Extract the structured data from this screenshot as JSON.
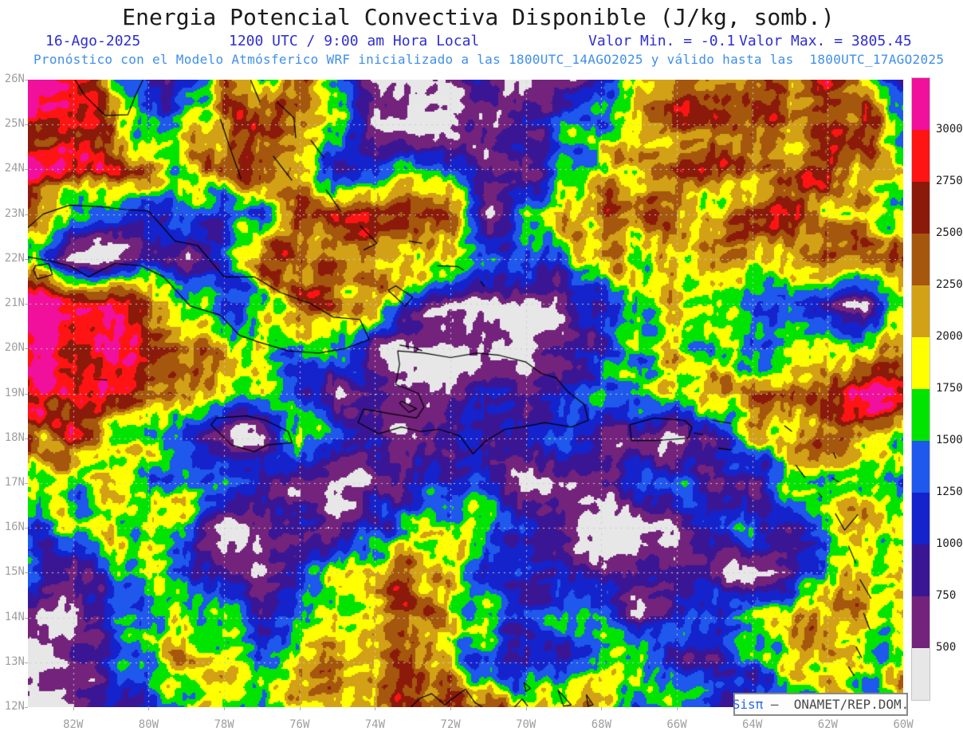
{
  "header": {
    "title": "Energia Potencial Convectiva Disponible (J/kg, somb.)",
    "date": "16-Ago-2025",
    "time": "1200 UTC / 9:00 am Hora Local",
    "min_label": "Valor Min. = -0.1",
    "max_label": "Valor Max. = 3805.45",
    "forecast_line": "Pronóstico con el Modelo Atmósferico WRF inicializado a las 1800UTC_14AGO2025 y válido hasta las  1800UTC_17AGO2025"
  },
  "attribution": {
    "brand": "Sisπ",
    "rest": " –  ONAMET/REP.DOM."
  },
  "chart_data": {
    "type": "heatmap",
    "title": "Energia Potencial Convectiva Disponible (J/kg, somb.)",
    "units": "J/kg",
    "valor_min": -0.1,
    "valor_max": 3805.45,
    "model": "WRF",
    "valid": "16-Ago-2025 1200 UTC / 9:00 am Hora Local",
    "init": "1800UTC_14AGO2025",
    "end": "1800UTC_17AGO2025",
    "lon_range": [
      -83.2,
      -60.0
    ],
    "lat_range": [
      12,
      26
    ],
    "lat_ticks": [
      "26N",
      "25N",
      "24N",
      "23N",
      "22N",
      "21N",
      "20N",
      "19N",
      "18N",
      "17N",
      "16N",
      "15N",
      "14N",
      "13N",
      "12N"
    ],
    "lon_ticks": [
      "82W",
      "80W",
      "78W",
      "76W",
      "74W",
      "72W",
      "70W",
      "68W",
      "66W",
      "64W",
      "62W",
      "60W"
    ],
    "lon_tick_values": [
      -82,
      -80,
      -78,
      -76,
      -74,
      -72,
      -70,
      -68,
      -66,
      -64,
      -62,
      -60
    ],
    "lat_tick_values": [
      26,
      25,
      24,
      23,
      22,
      21,
      20,
      19,
      18,
      17,
      16,
      15,
      14,
      13,
      12
    ],
    "levels": [
      500,
      750,
      1000,
      1250,
      1500,
      1750,
      2000,
      2250,
      2500,
      2750,
      3000
    ],
    "palette": [
      "#e7e7e7",
      "#73237b",
      "#3b1694",
      "#1423cc",
      "#1f58ec",
      "#00e400",
      "#ffff00",
      "#d2a115",
      "#a5570d",
      "#8b1a0b",
      "#fe1413",
      "#f0109b"
    ],
    "gridlines": {
      "lat_step": 1,
      "lon_step": 2,
      "color": "#cccccc"
    },
    "coast_color": "#000000",
    "grid": {
      "lon_start": -83,
      "lon_step": 1,
      "lat_start": 26,
      "lat_step": -1,
      "cols": 24,
      "rows": 15,
      "values": [
        [
          3200,
          2875,
          1875,
          1125,
          875,
          2100,
          1875,
          2375,
          1625,
          625,
          350,
          625,
          875,
          350,
          625,
          875,
          2375,
          2375,
          2125,
          2625,
          2375,
          2875,
          1625,
          1125
        ],
        [
          2875,
          2875,
          2375,
          1125,
          1875,
          2375,
          2625,
          1875,
          1875,
          350,
          350,
          350,
          625,
          875,
          1375,
          1625,
          1875,
          2375,
          2625,
          2375,
          2125,
          2375,
          2875,
          1375
        ],
        [
          2875,
          2625,
          2875,
          2125,
          1875,
          2375,
          2625,
          2125,
          1125,
          1125,
          1875,
          1125,
          875,
          625,
          1375,
          1875,
          2125,
          2375,
          2375,
          2125,
          2375,
          2625,
          2125,
          1875
        ],
        [
          2375,
          1375,
          1125,
          1125,
          1375,
          1125,
          1375,
          2375,
          2625,
          2375,
          2625,
          2375,
          350,
          1375,
          2125,
          2375,
          2375,
          2125,
          1875,
          2375,
          2625,
          2125,
          1875,
          1625
        ],
        [
          1625,
          350,
          350,
          875,
          625,
          1125,
          2625,
          2375,
          2125,
          2375,
          2125,
          1875,
          1625,
          1375,
          1375,
          2125,
          1875,
          2125,
          2375,
          2125,
          2375,
          2375,
          2625,
          2375
        ],
        [
          3200,
          2875,
          2875,
          2375,
          1875,
          1125,
          1375,
          2625,
          2375,
          2125,
          1125,
          625,
          350,
          350,
          625,
          1125,
          1625,
          1875,
          1625,
          1375,
          1125,
          625,
          350,
          1625
        ],
        [
          3200,
          2875,
          3200,
          2875,
          2375,
          2125,
          1875,
          1375,
          1625,
          625,
          350,
          350,
          625,
          350,
          625,
          1125,
          1625,
          1875,
          1625,
          1375,
          1625,
          1875,
          2125,
          2375
        ],
        [
          2875,
          2875,
          2625,
          2375,
          2125,
          1625,
          1625,
          1125,
          625,
          875,
          350,
          625,
          875,
          625,
          1125,
          1375,
          1625,
          1875,
          2125,
          2375,
          2125,
          2625,
          3200,
          2625
        ],
        [
          2375,
          2625,
          1875,
          1625,
          1125,
          625,
          350,
          2125,
          1125,
          875,
          625,
          1125,
          875,
          1375,
          1375,
          875,
          625,
          350,
          875,
          1875,
          2125,
          2375,
          2125,
          1875
        ],
        [
          1875,
          1625,
          1875,
          1625,
          1625,
          1375,
          1125,
          625,
          350,
          625,
          875,
          1125,
          1125,
          350,
          350,
          625,
          1125,
          1375,
          875,
          625,
          1625,
          1875,
          1625,
          1375
        ],
        [
          1375,
          1625,
          1875,
          1875,
          1625,
          350,
          625,
          875,
          625,
          1125,
          1625,
          1875,
          1625,
          1125,
          625,
          350,
          350,
          625,
          1125,
          1375,
          875,
          1625,
          2125,
          1875
        ],
        [
          1125,
          625,
          1375,
          1625,
          1125,
          625,
          350,
          1125,
          1625,
          2125,
          2375,
          1875,
          1125,
          875,
          1125,
          625,
          625,
          875,
          625,
          350,
          625,
          1625,
          2125,
          1875
        ],
        [
          625,
          350,
          1125,
          1625,
          1875,
          1625,
          1125,
          1625,
          1875,
          2125,
          2625,
          1875,
          1625,
          1125,
          1375,
          1625,
          625,
          1125,
          1375,
          1625,
          2125,
          2375,
          1875,
          1625
        ],
        [
          350,
          625,
          1125,
          1625,
          2125,
          1875,
          1625,
          1875,
          2125,
          1875,
          2375,
          1875,
          1125,
          875,
          1125,
          1625,
          1875,
          1125,
          875,
          1375,
          1875,
          2125,
          1625,
          1875
        ],
        [
          350,
          625,
          875,
          1125,
          1625,
          1875,
          1625,
          1875,
          2125,
          2375,
          2625,
          2375,
          2375,
          2125,
          2125,
          1875,
          1375,
          1625,
          1125,
          875,
          1375,
          1875,
          1625,
          1875
        ]
      ]
    },
    "coastlines": [
      [
        [
          -83.2,
          22.7
        ],
        [
          -82.8,
          23.0
        ],
        [
          -82.1,
          23.2
        ],
        [
          -81.3,
          23.17
        ],
        [
          -80.6,
          23.1
        ],
        [
          -80.0,
          23.07
        ],
        [
          -79.3,
          22.4
        ],
        [
          -78.7,
          22.3
        ],
        [
          -78.0,
          21.6
        ],
        [
          -77.2,
          21.6
        ],
        [
          -76.5,
          21.25
        ],
        [
          -75.7,
          21.0
        ],
        [
          -75.1,
          20.7
        ],
        [
          -74.4,
          20.65
        ],
        [
          -74.15,
          20.2
        ],
        [
          -74.8,
          20.0
        ],
        [
          -75.5,
          19.9
        ],
        [
          -76.3,
          19.95
        ],
        [
          -77.1,
          20.15
        ],
        [
          -77.6,
          20.3
        ],
        [
          -78.1,
          20.75
        ],
        [
          -78.9,
          20.95
        ],
        [
          -79.6,
          21.6
        ],
        [
          -80.2,
          21.85
        ],
        [
          -80.9,
          21.9
        ],
        [
          -81.6,
          21.6
        ],
        [
          -82.1,
          21.85
        ],
        [
          -82.6,
          21.95
        ],
        [
          -83.2,
          22.05
        ]
      ],
      [
        [
          -83.0,
          21.85
        ],
        [
          -82.65,
          21.9
        ],
        [
          -82.55,
          21.65
        ],
        [
          -82.95,
          21.55
        ],
        [
          -83.05,
          21.75
        ],
        [
          -83.0,
          21.85
        ]
      ],
      [
        [
          -73.4,
          19.95
        ],
        [
          -72.7,
          19.9
        ],
        [
          -72.0,
          19.8
        ],
        [
          -71.3,
          19.9
        ],
        [
          -70.7,
          19.85
        ],
        [
          -70.0,
          19.7
        ],
        [
          -69.6,
          19.45
        ],
        [
          -69.2,
          19.35
        ],
        [
          -68.9,
          19.05
        ],
        [
          -68.45,
          18.75
        ],
        [
          -68.35,
          18.4
        ],
        [
          -68.8,
          18.25
        ],
        [
          -69.5,
          18.35
        ],
        [
          -70.1,
          18.25
        ],
        [
          -70.55,
          18.2
        ],
        [
          -71.05,
          17.95
        ],
        [
          -71.4,
          17.65
        ],
        [
          -71.75,
          18.05
        ],
        [
          -72.3,
          18.2
        ],
        [
          -72.8,
          18.15
        ],
        [
          -73.3,
          18.25
        ],
        [
          -73.9,
          18.1
        ],
        [
          -74.45,
          18.35
        ],
        [
          -74.3,
          18.65
        ],
        [
          -73.6,
          18.55
        ],
        [
          -72.9,
          18.45
        ],
        [
          -72.7,
          18.7
        ],
        [
          -72.85,
          19.0
        ],
        [
          -73.45,
          19.2
        ],
        [
          -73.35,
          19.65
        ],
        [
          -73.4,
          19.95
        ]
      ],
      [
        [
          -73.35,
          20.08
        ],
        [
          -72.95,
          20.02
        ],
        [
          -72.75,
          19.95
        ]
      ],
      [
        [
          -73.3,
          18.83
        ],
        [
          -72.9,
          18.66
        ],
        [
          -73.1,
          18.58
        ],
        [
          -73.35,
          18.78
        ],
        [
          -73.3,
          18.83
        ]
      ],
      [
        [
          -78.35,
          18.3
        ],
        [
          -78.2,
          18.45
        ],
        [
          -77.4,
          18.5
        ],
        [
          -76.9,
          18.4
        ],
        [
          -76.3,
          18.15
        ],
        [
          -76.2,
          17.9
        ],
        [
          -76.85,
          17.85
        ],
        [
          -77.2,
          17.7
        ],
        [
          -77.8,
          17.85
        ],
        [
          -78.35,
          18.3
        ]
      ],
      [
        [
          -67.25,
          18.3
        ],
        [
          -66.6,
          18.45
        ],
        [
          -65.8,
          18.4
        ],
        [
          -65.6,
          18.25
        ],
        [
          -65.7,
          18.0
        ],
        [
          -66.5,
          17.95
        ],
        [
          -67.2,
          17.95
        ],
        [
          -67.25,
          18.3
        ]
      ],
      [
        [
          -65.55,
          18.12
        ],
        [
          -65.3,
          18.08
        ]
      ],
      [
        [
          -81.95,
          26.0
        ],
        [
          -81.7,
          25.65
        ],
        [
          -81.15,
          25.2
        ],
        [
          -80.55,
          25.22
        ],
        [
          -80.35,
          25.65
        ],
        [
          -80.15,
          26.0
        ]
      ],
      [
        [
          -78.1,
          25.12
        ],
        [
          -77.85,
          24.5
        ],
        [
          -77.55,
          23.78
        ]
      ],
      [
        [
          -77.3,
          26.0
        ],
        [
          -77.05,
          25.5
        ]
      ],
      [
        [
          -76.6,
          25.5
        ],
        [
          -76.15,
          25.15
        ],
        [
          -76.1,
          24.7
        ]
      ],
      [
        [
          -75.7,
          24.65
        ],
        [
          -75.35,
          24.25
        ]
      ],
      [
        [
          -76.7,
          24.3
        ],
        [
          -76.2,
          23.75
        ]
      ],
      [
        [
          -75.3,
          23.55
        ],
        [
          -74.9,
          23.05
        ]
      ],
      [
        [
          -74.4,
          22.75
        ],
        [
          -73.95,
          22.35
        ],
        [
          -74.3,
          22.2
        ]
      ],
      [
        [
          -73.1,
          22.4
        ],
        [
          -72.75,
          22.35
        ]
      ],
      [
        [
          -73.65,
          21.3
        ],
        [
          -73.2,
          20.95
        ],
        [
          -73.0,
          21.15
        ],
        [
          -73.45,
          21.4
        ],
        [
          -73.65,
          21.3
        ]
      ],
      [
        [
          -72.35,
          21.85
        ],
        [
          -71.8,
          21.83
        ],
        [
          -71.65,
          21.75
        ]
      ],
      [
        [
          -71.2,
          21.5
        ],
        [
          -71.1,
          21.38
        ]
      ],
      [
        [
          -81.45,
          19.32
        ],
        [
          -81.1,
          19.3
        ]
      ],
      [
        [
          -65.05,
          18.4
        ],
        [
          -64.55,
          18.33
        ]
      ],
      [
        [
          -64.9,
          17.78
        ],
        [
          -64.55,
          17.74
        ]
      ],
      [
        [
          -63.15,
          18.28
        ],
        [
          -62.95,
          18.15
        ]
      ],
      [
        [
          -62.85,
          17.4
        ],
        [
          -62.6,
          17.12
        ]
      ],
      [
        [
          -61.85,
          17.68
        ],
        [
          -61.78,
          17.55
        ]
      ],
      [
        [
          -61.9,
          17.12
        ],
        [
          -61.7,
          17.02
        ]
      ],
      [
        [
          -62.25,
          16.78
        ],
        [
          -62.15,
          16.68
        ]
      ],
      [
        [
          -61.8,
          16.32
        ],
        [
          -61.55,
          15.95
        ],
        [
          -61.2,
          16.3
        ]
      ],
      [
        [
          -61.45,
          15.6
        ],
        [
          -61.25,
          15.2
        ]
      ],
      [
        [
          -61.15,
          14.85
        ],
        [
          -60.85,
          14.42
        ]
      ],
      [
        [
          -61.05,
          14.1
        ],
        [
          -60.88,
          13.72
        ]
      ],
      [
        [
          -61.25,
          13.35
        ],
        [
          -61.1,
          13.1
        ]
      ],
      [
        [
          -61.45,
          12.9
        ],
        [
          -61.3,
          12.7
        ]
      ],
      [
        [
          -61.78,
          12.3
        ],
        [
          -61.6,
          11.98
        ]
      ],
      [
        [
          -70.05,
          12.55
        ],
        [
          -69.88,
          12.42
        ],
        [
          -70.0,
          12.35
        ],
        [
          -70.05,
          12.55
        ]
      ],
      [
        [
          -69.15,
          12.38
        ],
        [
          -68.8,
          12.05
        ],
        [
          -69.0,
          12.02
        ],
        [
          -69.15,
          12.38
        ]
      ],
      [
        [
          -68.4,
          12.28
        ],
        [
          -68.22,
          12.05
        ],
        [
          -68.35,
          12.02
        ],
        [
          -68.4,
          12.28
        ]
      ],
      [
        [
          -73.05,
          12.0
        ],
        [
          -72.8,
          12.2
        ],
        [
          -72.5,
          12.3
        ],
        [
          -72.15,
          12.05
        ],
        [
          -71.85,
          12.25
        ],
        [
          -71.6,
          12.4
        ],
        [
          -71.35,
          12.1
        ],
        [
          -71.15,
          12.0
        ]
      ],
      [
        [
          -70.3,
          12.0
        ],
        [
          -70.1,
          12.18
        ],
        [
          -69.95,
          12.02
        ]
      ],
      [
        [
          -60.85,
          12.1
        ],
        [
          -60.62,
          11.98
        ]
      ]
    ]
  }
}
